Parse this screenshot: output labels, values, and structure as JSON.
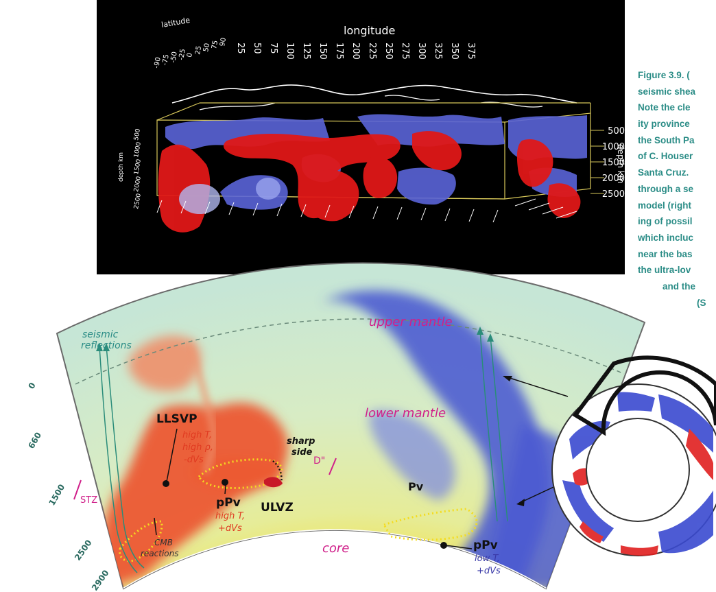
{
  "caption": {
    "lines": [
      "Figure 3.9. (",
      "seismic shea",
      "Note the cle",
      "ity province",
      "the South Pa",
      "of C. Houser",
      "Santa Cruz.",
      "through a se",
      "model (right",
      "ing of possil",
      "which incluc",
      "near the bas",
      "the ultra-lov",
      "and the",
      "(S"
    ]
  },
  "top_panel": {
    "latitude_label": "latitude",
    "longitude_label": "longitude",
    "longitude_ticks": [
      "25",
      "50",
      "75",
      "100",
      "125",
      "150",
      "175",
      "200",
      "225",
      "250",
      "275",
      "300",
      "325",
      "350",
      "375"
    ],
    "latitude_ticks": [
      "-90",
      "-75",
      "-50",
      "-25",
      "0",
      "25",
      "50",
      "75",
      "90"
    ],
    "depth_label": "depth km",
    "depth_ticks": [
      "500",
      "1000",
      "1500",
      "2000",
      "2500"
    ],
    "left_depth_label": "depth km",
    "left_depth_ticks": [
      "500",
      "1000",
      "1500",
      "2000",
      "2500"
    ],
    "colors": {
      "fast": "#5a64d8",
      "slow": "#e01818",
      "frame": "#d8c85a"
    }
  },
  "cross_section": {
    "labels": {
      "upper_mantle": "upper mantle",
      "lower_mantle": "lower mantle",
      "seismic_reflections": [
        "seismic",
        "reflections"
      ],
      "llsvp": "LLSVP",
      "llsvp_props": [
        "high T,",
        "high ρ,",
        "-dVs"
      ],
      "sharp_side": [
        "sharp",
        "side"
      ],
      "d_double_prime": "D\"",
      "stz": "STZ",
      "ulvz": "ULVZ",
      "ppv_hot": "pPv",
      "ppv_hot_props": [
        "high T,",
        "+dVs"
      ],
      "cmb_reactions": [
        "CMB",
        "reactions"
      ],
      "core": "core",
      "pv": "Pv",
      "ppv_cold": "pPv",
      "ppv_cold_props": [
        "low T,",
        "+dVs"
      ]
    },
    "depth_ticks": [
      "0",
      "660",
      "1500",
      "2500",
      "2900"
    ],
    "colors": {
      "label_magenta": "#d0208a",
      "label_teal": "#2a8c86",
      "hot_props": "#e03a20",
      "cold_props": "#3a3aa8"
    }
  },
  "ring": {
    "colors": {
      "fast": "#3a4ad0",
      "slow": "#e02020"
    }
  }
}
